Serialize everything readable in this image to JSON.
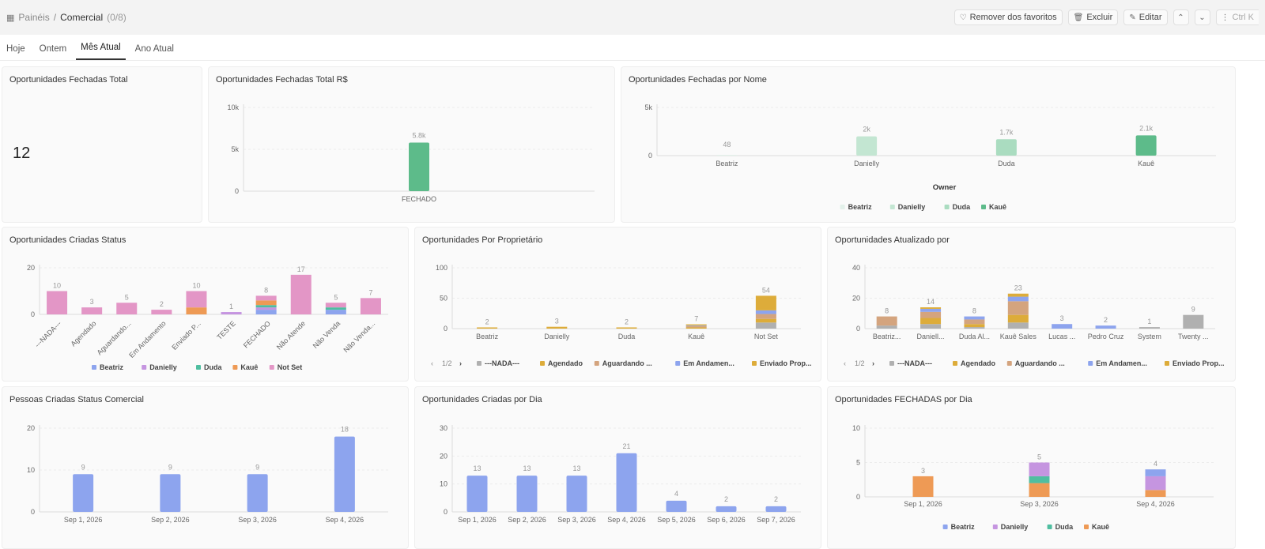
{
  "header": {
    "breadcrumb_root": "Painéis",
    "separator": "/",
    "breadcrumb_current": "Comercial",
    "breadcrumb_count": "(0/8)",
    "unfavorite_label": "Remover dos favoritos",
    "delete_label": "Excluir",
    "edit_label": "Editar",
    "command_hint": "Ctrl K"
  },
  "tabs": [
    {
      "label": "Hoje"
    },
    {
      "label": "Ontem"
    },
    {
      "label": "Mês Atual",
      "active": true
    },
    {
      "label": "Ano Atual"
    }
  ],
  "colors": {
    "Beatriz": "#8da4ee",
    "Danielly": "#c595e0",
    "Duda": "#4fbea0",
    "Kauê": "#ee9a55",
    "Not Set": "#e396c6",
    "pink": "#e396c6",
    "green": "#5dbb8a",
    "blue": "#8da4ee",
    "gray": "#b0b0b0",
    "gold": "#ddac3a",
    "tan": "#d4a47e"
  },
  "cards": {
    "kpi": {
      "title": "Oportunidades Fechadas Total",
      "value": "12"
    },
    "total_rs": {
      "title": "Oportunidades Fechadas Total R$"
    },
    "por_nome": {
      "title": "Oportunidades Fechadas por Nome",
      "axis_title": "Owner"
    },
    "criadas_status": {
      "title": "Oportunidades Criadas Status"
    },
    "por_proprietario": {
      "title": "Oportunidades Por Proprietário",
      "pager": "1/2"
    },
    "atualizado_por": {
      "title": "Oportunidades Atualizado por",
      "pager": "1/2"
    },
    "pessoas_status": {
      "title": "Pessoas Criadas Status Comercial"
    },
    "criadas_dia": {
      "title": "Oportunidades Criadas por Dia"
    },
    "fechadas_dia": {
      "title": "Oportunidades FECHADAS por Dia"
    }
  },
  "chart_data": [
    {
      "id": "total_rs",
      "type": "bar",
      "categories": [
        "FECHADO"
      ],
      "values": [
        5800
      ],
      "labels": [
        "5.8k"
      ],
      "yticks": [
        "0",
        "5k",
        "10k"
      ],
      "ylim": [
        0,
        10000
      ],
      "color": "#5dbb8a"
    },
    {
      "id": "por_nome",
      "type": "bar",
      "categories": [
        "Beatriz",
        "Danielly",
        "Duda",
        "Kauê"
      ],
      "values": [
        48,
        2000,
        1700,
        2100
      ],
      "labels": [
        "48",
        "2k",
        "1.7k",
        "2.1k"
      ],
      "colors": [
        "#e3f1ea",
        "#c3e6d2",
        "#aadcc0",
        "#5dbb8a"
      ],
      "yticks": [
        "0",
        "5k"
      ],
      "ylim": [
        0,
        5000
      ],
      "xlabel": "Owner",
      "legend": [
        "Beatriz",
        "Danielly",
        "Duda",
        "Kauê"
      ]
    },
    {
      "id": "criadas_status",
      "type": "bar",
      "stacked": true,
      "categories": [
        "---NADA---",
        "Agendado",
        "Aguardando...",
        "Em Andamento",
        "Enviado P...",
        "TESTE",
        "FECHADO",
        "Não Atende",
        "Não Venda",
        "Não Venda..."
      ],
      "totals": [
        10,
        3,
        5,
        2,
        10,
        1,
        8,
        17,
        5,
        7
      ],
      "series": [
        {
          "name": "Beatriz",
          "values": [
            0,
            0,
            0,
            0,
            0,
            0,
            2,
            0,
            2,
            0
          ]
        },
        {
          "name": "Danielly",
          "values": [
            0,
            0,
            0,
            0,
            0,
            1,
            1,
            0,
            0,
            0
          ]
        },
        {
          "name": "Duda",
          "values": [
            0,
            0,
            0,
            0,
            0,
            0,
            1,
            0,
            1,
            0
          ]
        },
        {
          "name": "Kauê",
          "values": [
            0,
            0,
            0,
            0,
            3,
            0,
            2,
            0,
            0,
            0
          ]
        },
        {
          "name": "Not Set",
          "values": [
            10,
            3,
            5,
            2,
            7,
            0,
            2,
            17,
            2,
            7
          ]
        }
      ],
      "yticks": [
        "0",
        "20"
      ],
      "ylim": [
        0,
        20
      ],
      "legend": [
        "Beatriz",
        "Danielly",
        "Duda",
        "Kauê",
        "Not Set"
      ]
    },
    {
      "id": "por_proprietario",
      "type": "bar",
      "stacked": true,
      "categories": [
        "Beatriz",
        "Danielly",
        "Duda",
        "Kauê",
        "Not Set"
      ],
      "totals": [
        2,
        3,
        2,
        7,
        54
      ],
      "series": [
        {
          "name": "---NADA---",
          "values": [
            0,
            0,
            0,
            0,
            10
          ]
        },
        {
          "name": "Agendado",
          "values": [
            0,
            0,
            0,
            2,
            6
          ]
        },
        {
          "name": "Aguardando ...",
          "values": [
            0,
            0,
            0,
            2,
            8
          ]
        },
        {
          "name": "Em Andamen...",
          "values": [
            0,
            0,
            0,
            1,
            6
          ]
        },
        {
          "name": "Enviado Prop...",
          "values": [
            2,
            3,
            2,
            2,
            24
          ]
        }
      ],
      "yticks": [
        "0",
        "50",
        "100"
      ],
      "ylim": [
        0,
        100
      ],
      "legend": [
        "---NADA---",
        "Agendado",
        "Aguardando ...",
        "Em Andamen...",
        "Enviado Prop..."
      ]
    },
    {
      "id": "atualizado_por",
      "type": "bar",
      "stacked": true,
      "categories": [
        "Beatriz...",
        "Daniell...",
        "Duda Al...",
        "Kauê Sales",
        "Lucas ...",
        "Pedro Cruz",
        "System",
        "Twenty ..."
      ],
      "totals": [
        8,
        14,
        8,
        23,
        3,
        2,
        1,
        9
      ],
      "series": [
        {
          "name": "---NADA---",
          "values": [
            2,
            3,
            1,
            4,
            0,
            0,
            1,
            9
          ]
        },
        {
          "name": "Agendado",
          "values": [
            0,
            4,
            2,
            5,
            0,
            0,
            0,
            0
          ]
        },
        {
          "name": "Aguardando ...",
          "values": [
            6,
            4,
            3,
            9,
            0,
            0,
            0,
            0
          ]
        },
        {
          "name": "Em Andamen...",
          "values": [
            0,
            2,
            2,
            3,
            3,
            2,
            0,
            0
          ]
        },
        {
          "name": "Enviado Prop...",
          "values": [
            0,
            1,
            0,
            2,
            0,
            0,
            0,
            0
          ]
        }
      ],
      "yticks": [
        "0",
        "20",
        "40"
      ],
      "ylim": [
        0,
        40
      ],
      "legend": [
        "---NADA---",
        "Agendado",
        "Aguardando ...",
        "Em Andamen...",
        "Enviado Prop..."
      ]
    },
    {
      "id": "pessoas_status",
      "type": "bar",
      "categories": [
        "Sep 1, 2026",
        "Sep 2, 2026",
        "Sep 3, 2026",
        "Sep 4, 2026"
      ],
      "values": [
        9,
        9,
        9,
        18
      ],
      "labels": [
        "9",
        "9",
        "9",
        "18"
      ],
      "yticks": [
        "0",
        "10",
        "20"
      ],
      "ylim": [
        0,
        20
      ],
      "color": "#8da4ee"
    },
    {
      "id": "criadas_dia",
      "type": "bar",
      "categories": [
        "Sep 1, 2026",
        "Sep 2, 2026",
        "Sep 3, 2026",
        "Sep 4, 2026",
        "Sep 5, 2026",
        "Sep 6, 2026",
        "Sep 7, 2026"
      ],
      "values": [
        13,
        13,
        13,
        21,
        4,
        2,
        2
      ],
      "labels": [
        "13",
        "13",
        "13",
        "21",
        "4",
        "2",
        "2"
      ],
      "yticks": [
        "0",
        "10",
        "20",
        "30"
      ],
      "ylim": [
        0,
        30
      ],
      "color": "#8da4ee"
    },
    {
      "id": "fechadas_dia",
      "type": "bar",
      "stacked": true,
      "categories": [
        "Sep 1, 2026",
        "Sep 3, 2026",
        "Sep 4, 2026"
      ],
      "totals": [
        3,
        5,
        4
      ],
      "series": [
        {
          "name": "Kauê",
          "values": [
            3,
            2,
            1
          ]
        },
        {
          "name": "Duda",
          "values": [
            0,
            1,
            0
          ]
        },
        {
          "name": "Danielly",
          "values": [
            0,
            2,
            2
          ]
        },
        {
          "name": "Beatriz",
          "values": [
            0,
            0,
            1
          ]
        }
      ],
      "yticks": [
        "0",
        "5",
        "10"
      ],
      "ylim": [
        0,
        10
      ],
      "legend": [
        "Beatriz",
        "Danielly",
        "Duda",
        "Kauê"
      ]
    }
  ]
}
